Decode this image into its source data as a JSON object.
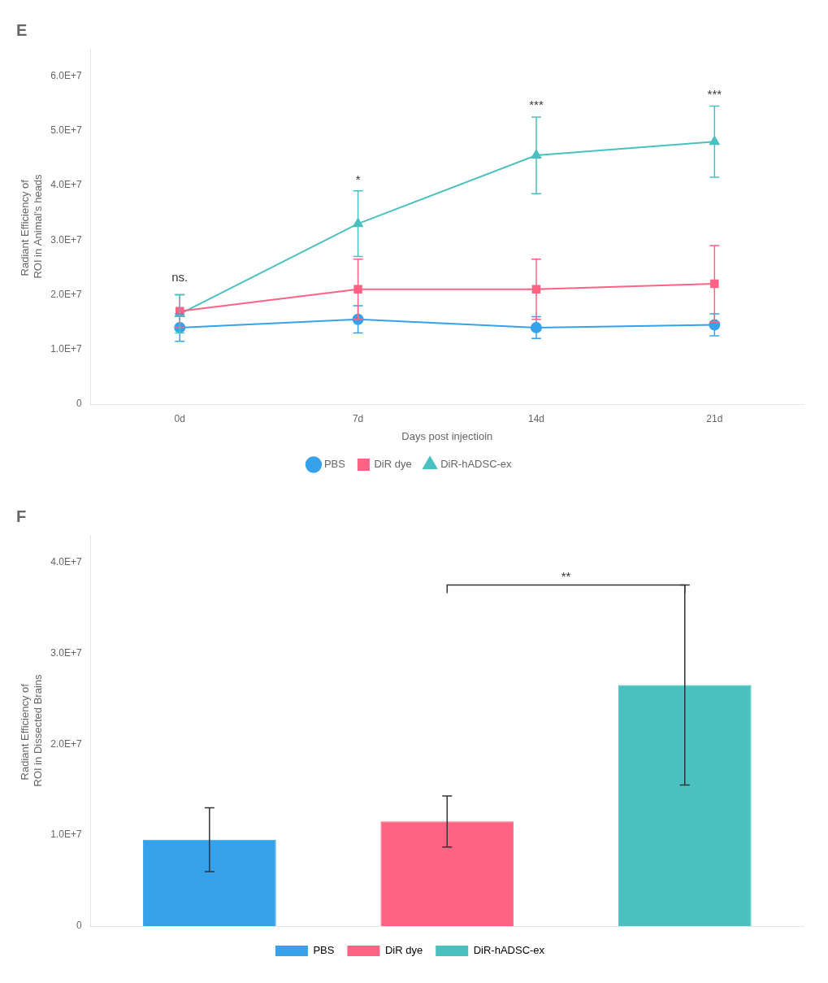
{
  "chart_data": [
    {
      "type": "line",
      "title": "E",
      "categories": [
        "0d",
        "7d",
        "14d",
        "21d"
      ],
      "xlabel": "Days post injectioin",
      "ylabel": "Radiant Efficiency of \nROI in Animal's heads",
      "series": [
        {
          "name": "PBS",
          "marker": "circle",
          "values": [
            14000000.0,
            15500000.0,
            14000000.0,
            14500000.0
          ],
          "errors": [
            2500000.0,
            2500000.0,
            2000000.0,
            2000000.0
          ]
        },
        {
          "name": "DiR dye",
          "marker": "square",
          "values": [
            17000000.0,
            21000000.0,
            21000000.0,
            22000000.0
          ],
          "errors": [
            3000000.0,
            5500000.0,
            5500000.0,
            7000000.0
          ]
        },
        {
          "name": "DiR-hADSC-ex",
          "marker": "triangle",
          "values": [
            16500000.0,
            33000000.0,
            45500000.0,
            48000000.0
          ],
          "errors": [
            3500000.0,
            6000000.0,
            7000000.0,
            6500000.0
          ]
        }
      ],
      "ylim": [
        0,
        65000000.0
      ],
      "yticks": [
        0,
        {
          "value": 10000000.0,
          "label": "1.0E+7"
        },
        {
          "value": 20000000.0,
          "label": "2.0E+7"
        },
        {
          "value": 30000000.0,
          "label": "3.0E+7"
        },
        {
          "value": 40000000.0,
          "label": "4.0E+7"
        },
        {
          "value": 50000000.0,
          "label": "5.0E+7"
        },
        {
          "value": 60000000.0,
          "label": "6.0E+7"
        }
      ],
      "annotations": [
        {
          "text": "ns.",
          "x": "0d",
          "y": 22000000.0
        },
        {
          "text": "*",
          "x": "7d",
          "y": 39800000.0
        },
        {
          "text": "***",
          "x": "14d",
          "y": 53500000.0
        },
        {
          "text": "***",
          "x": "21d",
          "y": 55500000.0
        }
      ],
      "grid": false,
      "legend": "bottom"
    },
    {
      "type": "bar",
      "title": "F",
      "categories": [
        "PBS",
        "DiR dye",
        "DiR-hADSC-ex"
      ],
      "values": [
        9500000.0,
        11500000.0,
        26500000.0
      ],
      "errors": [
        3500000.0,
        2800000.0,
        11000000.0
      ],
      "ylabel": "Radiant Efficiency of \nROI in Dissected Brains",
      "ylim": [
        0,
        43000000.0
      ],
      "yticks": [
        0,
        {
          "value": 10000000.0,
          "label": "1.0E+7"
        },
        {
          "value": 20000000.0,
          "label": "2.0E+7"
        },
        {
          "value": 30000000.0,
          "label": "3.0E+7"
        },
        {
          "value": 40000000.0,
          "label": "4.0E+7"
        }
      ],
      "annotations": [
        {
          "text": "**",
          "x": [
            "DiR dye",
            "DiR-hADSC-ex"
          ],
          "y": 37500000.0
        }
      ],
      "tick_labels": "y",
      "grid": false,
      "legend": "bottom"
    }
  ]
}
